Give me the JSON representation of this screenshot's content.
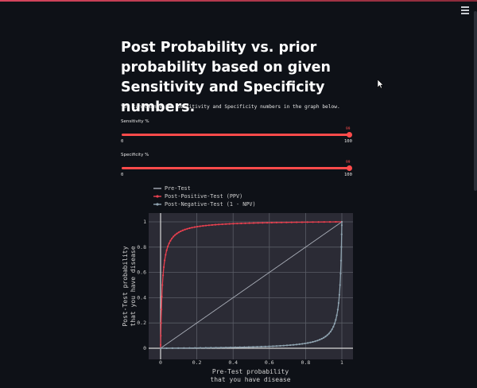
{
  "app": {
    "title": "Post Probability vs. prior probability based on given Sensitivity and Specificity numbers.",
    "description": "You can change the Sensitivity and Specificity numbers in the graph below.",
    "menu_icon": "hamburger-icon"
  },
  "sliders": [
    {
      "label": "Sensitivity %",
      "value": "99",
      "min": "0",
      "max": "100"
    },
    {
      "label": "Specificity %",
      "value": "99",
      "min": "0",
      "max": "100"
    }
  ],
  "colors": {
    "background": "#0e1117",
    "accent": "#ff4b4b",
    "plot_bg": "#2b2b35",
    "pre_test": "#a9aeb8",
    "ppv": "#e8404f",
    "npv": "#8fa3b0"
  },
  "chart_data": {
    "type": "line",
    "xlabel_lines": [
      "Pre-Test probability",
      "that you have disease"
    ],
    "ylabel_lines": [
      "Post-Test probability",
      "that you have disease"
    ],
    "xlim": [
      0,
      1
    ],
    "ylim": [
      0,
      1
    ],
    "xticks": [
      "0",
      "0.2",
      "0.4",
      "0.6",
      "0.8",
      "1"
    ],
    "yticks": [
      "0",
      "0.2",
      "0.4",
      "0.6",
      "0.8",
      "1"
    ],
    "grid": true,
    "legend_position": "top-left",
    "sensitivity": 0.99,
    "specificity": 0.99,
    "series": [
      {
        "name": "Pre-Test",
        "x": [
          0,
          1
        ],
        "y": [
          0,
          1
        ]
      },
      {
        "name": "Post-Positive-Test (PPV)",
        "x": [
          0.001,
          0.002,
          0.005,
          0.01,
          0.02,
          0.05,
          0.1,
          0.2,
          0.3,
          0.5,
          0.7,
          0.9,
          1
        ],
        "y": [
          0.09,
          0.166,
          0.332,
          0.5,
          0.669,
          0.839,
          0.917,
          0.961,
          0.977,
          0.99,
          0.996,
          0.999,
          1
        ]
      },
      {
        "name": "Post-Negative-Test (1 - NPV)",
        "x": [
          0,
          0.1,
          0.3,
          0.5,
          0.7,
          0.8,
          0.9,
          0.95,
          0.98,
          0.99,
          0.995,
          0.999,
          1
        ],
        "y": [
          0,
          0.001,
          0.004,
          0.01,
          0.023,
          0.039,
          0.083,
          0.161,
          0.331,
          0.5,
          0.666,
          0.908,
          1
        ]
      }
    ]
  }
}
